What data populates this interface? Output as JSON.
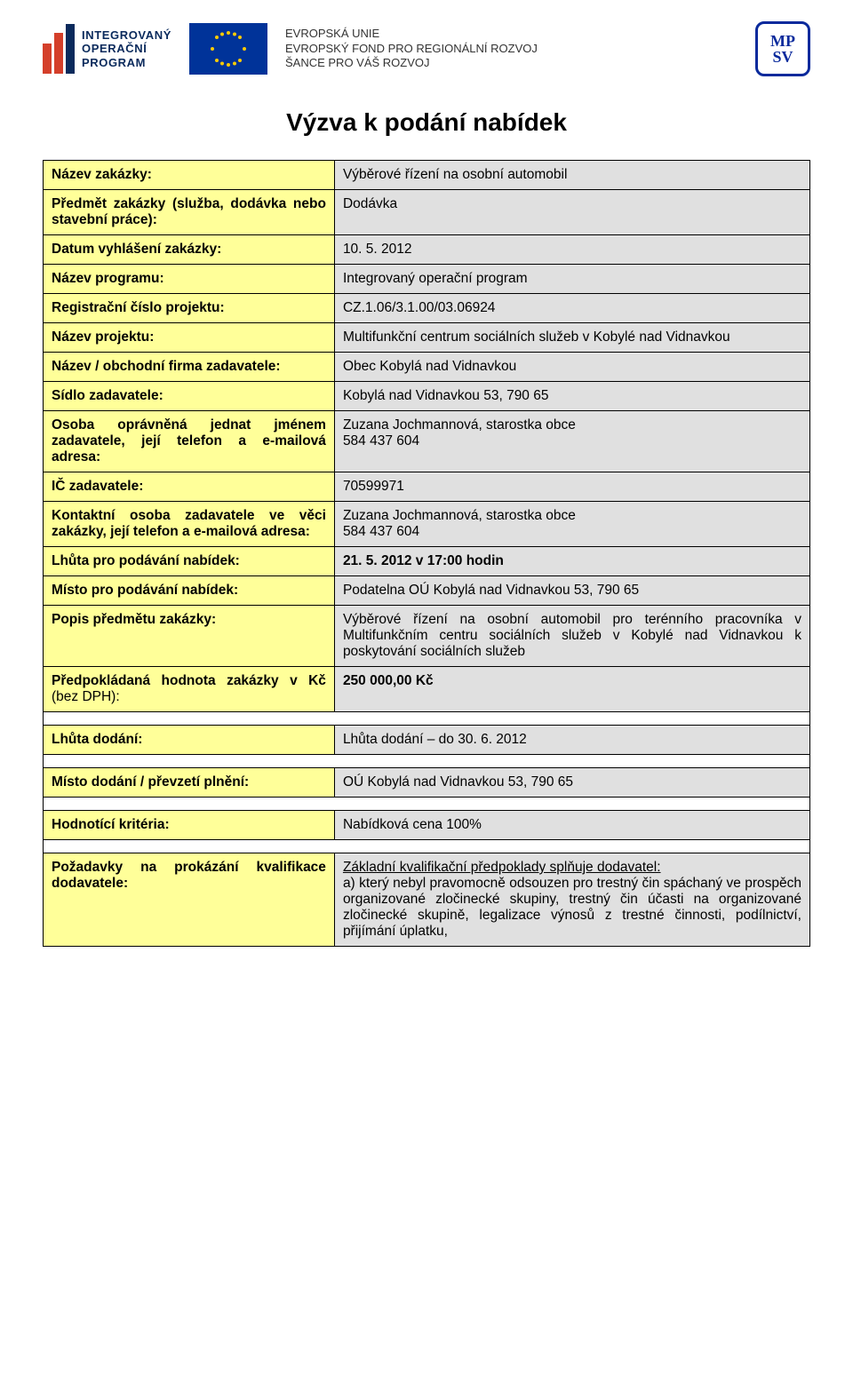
{
  "header": {
    "iop_label_line1": "INTEGROVANÝ",
    "iop_label_line2": "OPERAČNÍ",
    "iop_label_line3": "PROGRAM",
    "eu_line1": "EVROPSKÁ UNIE",
    "eu_line2": "EVROPSKÝ FOND PRO REGIONÁLNÍ ROZVOJ",
    "eu_line3": "ŠANCE PRO VÁŠ ROZVOJ",
    "mpsv": "MP\nSV"
  },
  "title": "Výzva k podání nabídek",
  "rows": [
    {
      "label": "Název zakázky:",
      "value": "Výběrové řízení na osobní automobil"
    },
    {
      "label": "Předmět zakázky (služba, dodávka nebo stavební práce):",
      "value": "Dodávka"
    },
    {
      "label": "Datum vyhlášení zakázky:",
      "value": "10. 5. 2012"
    },
    {
      "label": "Název programu:",
      "value": "Integrovaný operační program"
    },
    {
      "label": "Registrační číslo projektu:",
      "value": "CZ.1.06/3.1.00/03.06924"
    },
    {
      "label": "Název projektu:",
      "value": "Multifunkční centrum sociálních služeb v Kobylé nad Vidnavkou",
      "justify": true
    },
    {
      "label": "Název / obchodní firma zadavatele:",
      "value": "Obec Kobylá nad Vidnavkou"
    },
    {
      "label": "Sídlo zadavatele:",
      "value": "Kobylá nad Vidnavkou 53, 790 65"
    },
    {
      "label": "Osoba oprávněná jednat jménem zadavatele, její telefon a e-mailová adresa:",
      "value": "Zuzana Jochmannová, starostka obce\n584 437 604"
    },
    {
      "label": "IČ zadavatele:",
      "value": "70599971"
    },
    {
      "label": "Kontaktní osoba zadavatele ve věci zakázky, její telefon a e-mailová adresa:",
      "value": "Zuzana Jochmannová, starostka obce\n584 437 604"
    },
    {
      "label": "Lhůta pro podávání nabídek:",
      "value": "21. 5. 2012 v 17:00 hodin",
      "bold": true
    },
    {
      "label": "Místo pro podávání nabídek:",
      "value": "Podatelna OÚ Kobylá nad Vidnavkou 53, 790 65"
    },
    {
      "label": "Popis předmětu zakázky:",
      "value": "Výběrové řízení na osobní automobil pro terénního pracovníka v Multifunkčním centru sociálních služeb v Kobylé nad Vidnavkou k poskytování sociálních služeb",
      "justify": true
    },
    {
      "label": "Předpokládaná hodnota zakázky v Kč",
      "label_suffix_light": " (bez DPH):",
      "value": "250 000,00 Kč",
      "bold": true
    }
  ],
  "rows2": [
    {
      "label": "Lhůta dodání:",
      "value": "Lhůta dodání – do 30. 6. 2012"
    }
  ],
  "rows3": [
    {
      "label": "Místo dodání / převzetí plnění:",
      "value": "OÚ Kobylá nad Vidnavkou 53, 790 65"
    }
  ],
  "rows4": [
    {
      "label": "Hodnotící kritéria:",
      "value": "Nabídková cena 100%"
    }
  ],
  "rows5": [
    {
      "label": "Požadavky na prokázání kvalifikace dodavatele:",
      "value_html": "<span style='text-decoration:underline'>Základní kvalifikační předpoklady splňuje dodavatel:</span><br>a) který nebyl pravomocně odsouzen pro trestný čin spáchaný ve prospěch organizované zločinecké skupiny, trestný čin účasti na organizované zločinecké skupině, legalizace výnosů z trestné činnosti, podílnictví, přijímání úplatku,",
      "justify": true
    }
  ],
  "colors": {
    "label_bg": "#ffff99",
    "value_bg": "#e0e0e0",
    "border": "#000000"
  }
}
